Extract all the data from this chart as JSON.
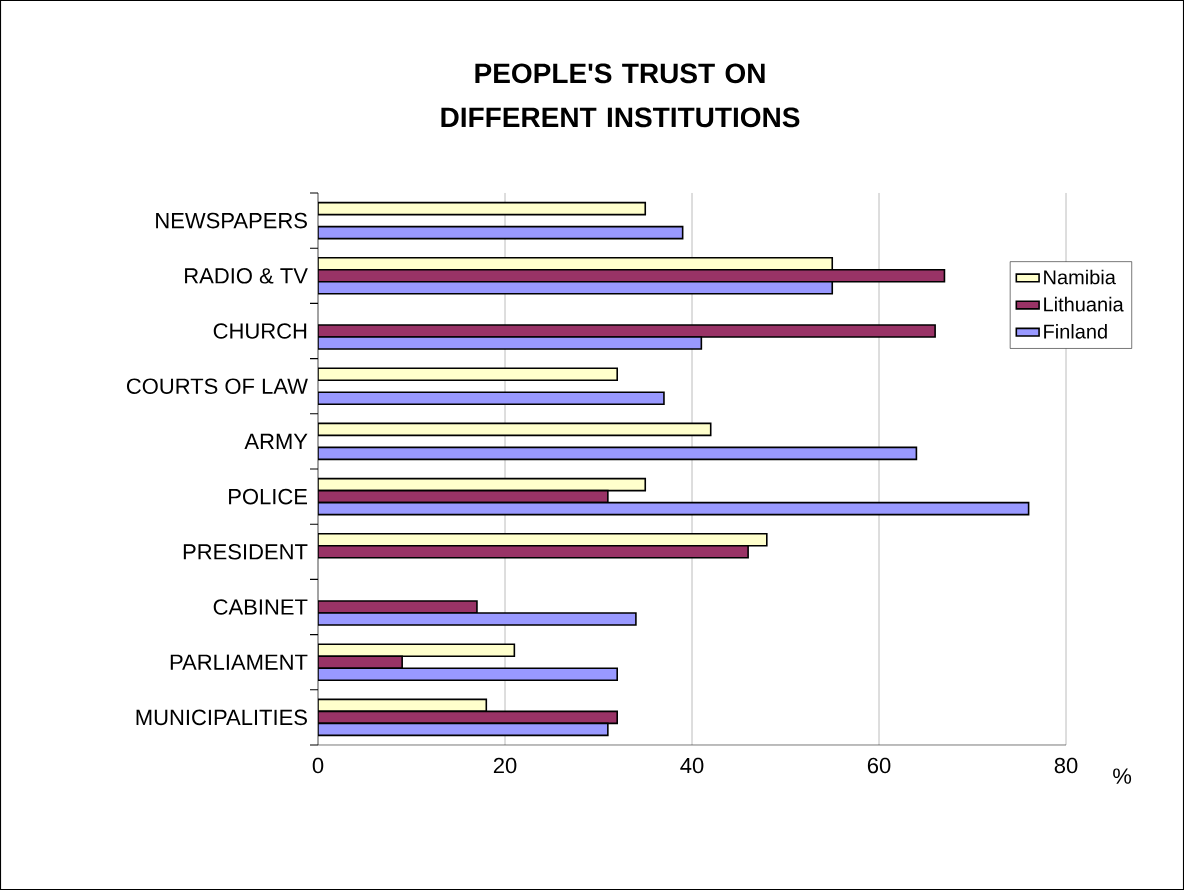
{
  "chart_data": {
    "type": "bar",
    "orientation": "horizontal",
    "title": "PEOPLE'S TRUST ON DIFFERENT INSTITUTIONS",
    "xlabel": "%",
    "categories": [
      "NEWSPAPERS",
      "RADIO & TV",
      "CHURCH",
      "COURTS OF LAW",
      "ARMY",
      "POLICE",
      "PRESIDENT",
      "CABINET",
      "PARLIAMENT",
      "MUNICIPALITIES"
    ],
    "series": [
      {
        "name": "Namibia",
        "color": "#ffffcc",
        "values": [
          35,
          55,
          null,
          32,
          42,
          35,
          48,
          null,
          21,
          18
        ]
      },
      {
        "name": "Lithuania",
        "color": "#993366",
        "values": [
          null,
          67,
          66,
          null,
          null,
          31,
          46,
          17,
          9,
          32
        ]
      },
      {
        "name": "Finland",
        "color": "#9999ff",
        "values": [
          39,
          55,
          41,
          37,
          64,
          76,
          null,
          34,
          32,
          31
        ]
      }
    ],
    "xlim": [
      0,
      80
    ],
    "xticks": [
      0,
      20,
      40,
      60,
      80
    ],
    "grid": "x",
    "legend": "right"
  }
}
